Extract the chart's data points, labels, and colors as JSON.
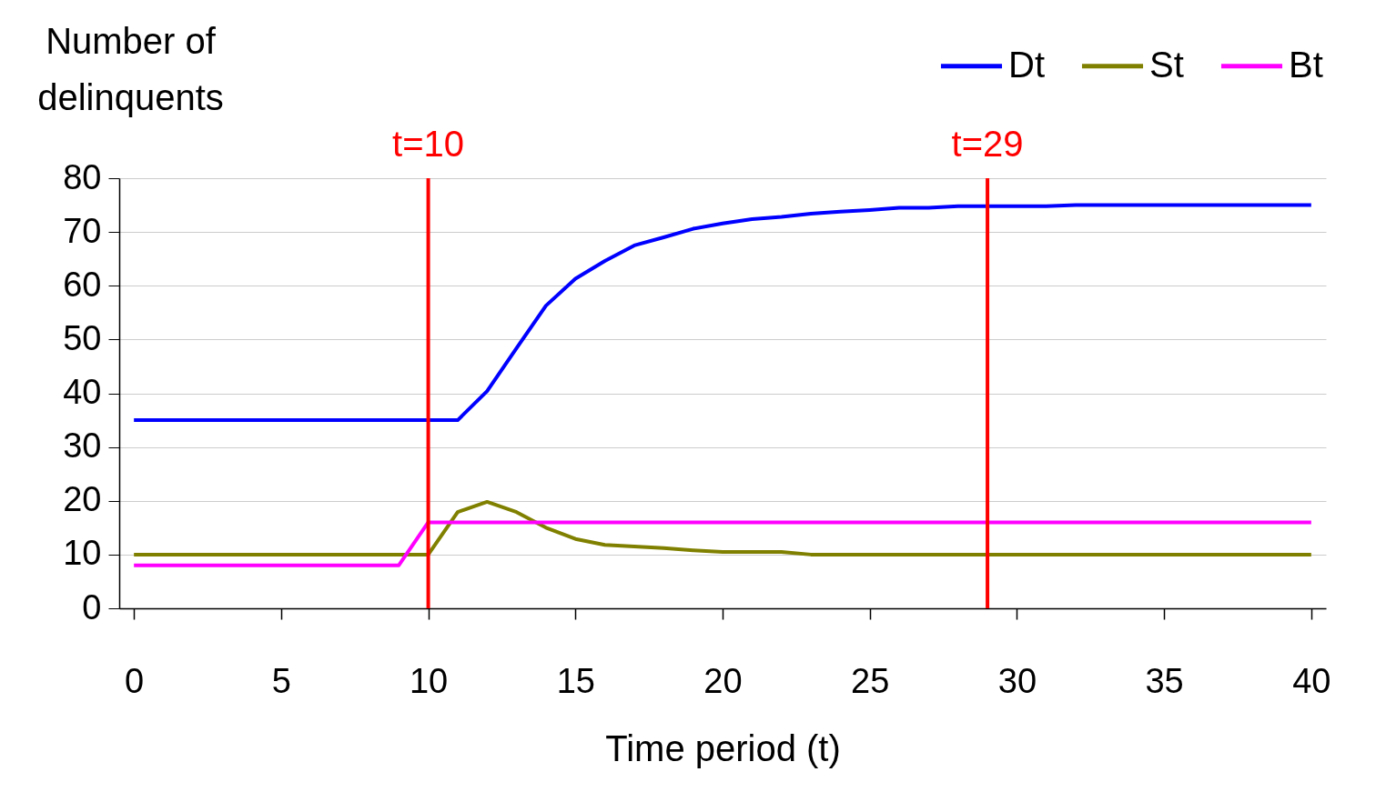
{
  "chart_data": {
    "type": "line",
    "ylabel": "Number of delinquents",
    "xlabel": "Time period (t)",
    "x": [
      0,
      1,
      2,
      3,
      4,
      5,
      6,
      7,
      8,
      9,
      10,
      11,
      12,
      13,
      14,
      15,
      16,
      17,
      18,
      19,
      20,
      21,
      22,
      23,
      24,
      25,
      26,
      27,
      28,
      29,
      30,
      31,
      32,
      33,
      34,
      35,
      36,
      37,
      38,
      39,
      40
    ],
    "series": [
      {
        "name": "Dt",
        "color": "#0000ff",
        "values": [
          35,
          35,
          35,
          35,
          35,
          35,
          35,
          35,
          35,
          35,
          35,
          35,
          40.4,
          48.4,
          56.3,
          61.3,
          64.6,
          67.5,
          69,
          70.6,
          71.6,
          72.4,
          72.8,
          73.4,
          73.8,
          74.1,
          74.5,
          74.5,
          74.8,
          74.8,
          74.8,
          74.8,
          75,
          75,
          75,
          75,
          75,
          75,
          75,
          75,
          75
        ]
      },
      {
        "name": "St",
        "color": "#808000",
        "values": [
          10,
          10,
          10,
          10,
          10,
          10,
          10,
          10,
          10,
          10,
          10,
          17.9,
          19.8,
          17.9,
          15,
          12.9,
          11.8,
          11.5,
          11.2,
          10.8,
          10.5,
          10.5,
          10.5,
          10,
          10,
          10,
          10,
          10,
          10,
          10,
          10,
          10,
          10,
          10,
          10,
          10,
          10,
          10,
          10,
          10,
          10
        ]
      },
      {
        "name": "Bt",
        "color": "#ff00ff",
        "values": [
          8,
          8,
          8,
          8,
          8,
          8,
          8,
          8,
          8,
          8,
          16,
          16,
          16,
          16,
          16,
          16,
          16,
          16,
          16,
          16,
          16,
          16,
          16,
          16,
          16,
          16,
          16,
          16,
          16,
          16,
          16,
          16,
          16,
          16,
          16,
          16,
          16,
          16,
          16,
          16,
          16
        ]
      }
    ],
    "xlim": [
      -0.5,
      40.5
    ],
    "xticks": [
      0,
      5,
      10,
      15,
      20,
      25,
      30,
      35,
      40
    ],
    "ylim": [
      0,
      80
    ],
    "yticks": [
      0,
      10,
      20,
      30,
      40,
      50,
      60,
      70,
      80
    ],
    "grid": "y",
    "legend": "top right",
    "marker": "none",
    "line_style": "solid",
    "ref_lines": [
      {
        "axis": "x",
        "value": 10,
        "label": "t=10",
        "color": "#ff0000"
      },
      {
        "axis": "x",
        "value": 29,
        "label": "t=29",
        "color": "#ff0000"
      }
    ]
  }
}
